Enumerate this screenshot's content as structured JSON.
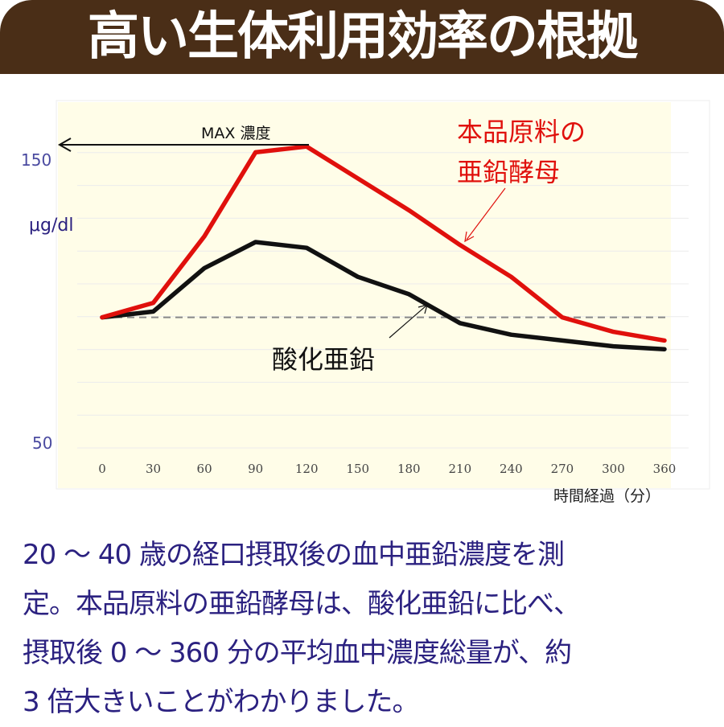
{
  "header": {
    "title": "高い生体利用効率の根拠"
  },
  "chart_data": {
    "type": "line",
    "categories": [
      "0",
      "30",
      "60",
      "90",
      "120",
      "150",
      "180",
      "210",
      "240",
      "270",
      "300",
      "360"
    ],
    "xlabel": "時間経過（分）",
    "ylabel": "μg/dl",
    "yticks": [
      "150",
      "50"
    ],
    "ylim": [
      50,
      150
    ],
    "grid": true,
    "baseline": 94,
    "max_annotation": "MAX 濃度",
    "series": [
      {
        "name": "本品原料の亜鉛酵母",
        "name_lines": [
          "本品原料の",
          "亜鉛酵母"
        ],
        "color": "#e0100c",
        "values": [
          94,
          99,
          122,
          151,
          153,
          142,
          131,
          119,
          108,
          94,
          89,
          86
        ]
      },
      {
        "name": "酸化亜鉛",
        "name_lines": [
          "酸化亜鉛"
        ],
        "color": "#111111",
        "values": [
          94,
          96,
          111,
          120,
          118,
          108,
          102,
          92,
          88,
          86,
          84,
          83
        ]
      }
    ]
  },
  "description": {
    "lines": [
      "20 ～ 40 歳の経口摂取後の血中亜鉛濃度を測",
      "定。本品原料の亜鉛酵母は、酸化亜鉛に比べ、",
      "摂取後 0 ～ 360 分の平均血中濃度総量が、約",
      " 3 倍大きいことがわかりました。"
    ]
  }
}
